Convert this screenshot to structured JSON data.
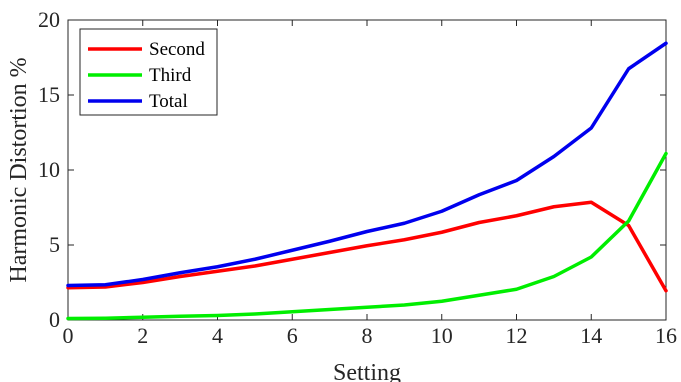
{
  "chart_data": {
    "type": "line",
    "title": "",
    "xlabel": "Setting",
    "ylabel": "Harmonic Distortion %",
    "xlim": [
      0,
      16
    ],
    "ylim": [
      0,
      20
    ],
    "xticks": [
      0,
      2,
      4,
      6,
      8,
      10,
      12,
      14,
      16
    ],
    "yticks": [
      0,
      5,
      10,
      15,
      20
    ],
    "grid": false,
    "legend_position": "top-left",
    "x": [
      0,
      1,
      2,
      3,
      4,
      5,
      6,
      7,
      8,
      9,
      10,
      11,
      12,
      13,
      14,
      15,
      16
    ],
    "series": [
      {
        "name": "Second",
        "color": "#ff0000",
        "values": [
          2.15,
          2.2,
          2.5,
          2.9,
          3.25,
          3.6,
          4.05,
          4.5,
          4.95,
          5.35,
          5.85,
          6.5,
          6.95,
          7.55,
          7.85,
          6.3,
          1.95
        ]
      },
      {
        "name": "Third",
        "color": "#00ee00",
        "values": [
          0.1,
          0.12,
          0.18,
          0.25,
          0.3,
          0.4,
          0.55,
          0.7,
          0.85,
          1.0,
          1.25,
          1.65,
          2.05,
          2.9,
          4.2,
          6.6,
          11.1
        ]
      },
      {
        "name": "Total",
        "color": "#0000ee",
        "values": [
          2.3,
          2.35,
          2.7,
          3.15,
          3.55,
          4.05,
          4.65,
          5.25,
          5.9,
          6.45,
          7.25,
          8.35,
          9.3,
          10.9,
          12.8,
          16.75,
          18.45
        ]
      }
    ]
  }
}
